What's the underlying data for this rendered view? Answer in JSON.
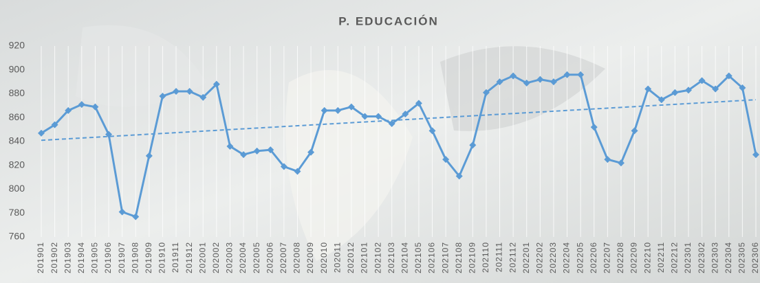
{
  "chart_data": {
    "type": "line",
    "title": "P. EDUCACIÓN",
    "categories": [
      "201901",
      "201902",
      "201903",
      "201904",
      "201905",
      "201906",
      "201907",
      "201908",
      "201909",
      "201910",
      "201911",
      "201912",
      "202001",
      "202002",
      "202003",
      "202004",
      "202005",
      "202006",
      "202007",
      "202008",
      "202009",
      "202010",
      "202011",
      "202012",
      "202101",
      "202102",
      "202103",
      "202104",
      "202105",
      "202106",
      "202107",
      "202108",
      "202109",
      "202110",
      "202111",
      "202112",
      "202201",
      "202202",
      "202203",
      "202204",
      "202205",
      "202206",
      "202207",
      "202208",
      "202209",
      "202210",
      "202211",
      "202212",
      "202301",
      "202302",
      "202303",
      "202304",
      "202305",
      "202306"
    ],
    "values": [
      847,
      854,
      866,
      871,
      869,
      846,
      781,
      777,
      828,
      878,
      882,
      882,
      877,
      888,
      836,
      829,
      832,
      833,
      819,
      815,
      831,
      866,
      866,
      869,
      861,
      861,
      855,
      863,
      872,
      849,
      825,
      811,
      837,
      881,
      890,
      895,
      889,
      892,
      890,
      896,
      896,
      852,
      825,
      822,
      849,
      884,
      875,
      881,
      883,
      891,
      884,
      895,
      885,
      829
    ],
    "color": "#5b9bd5",
    "trendline": [
      841,
      875
    ],
    "ylim": [
      760,
      920
    ],
    "yticks": [
      760,
      780,
      800,
      820,
      840,
      860,
      880,
      900,
      920
    ],
    "grid": true
  }
}
